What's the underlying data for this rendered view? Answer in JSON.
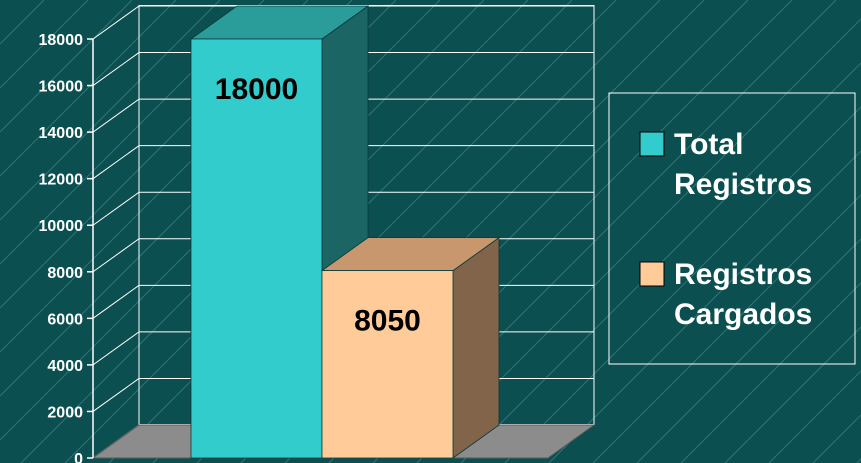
{
  "chart_data": {
    "type": "bar",
    "categories": [
      ""
    ],
    "series": [
      {
        "name": "Total Registros",
        "values": [
          18000
        ]
      },
      {
        "name": "Registros Cargados",
        "values": [
          8050
        ]
      }
    ],
    "title": "",
    "xlabel": "",
    "ylabel": "",
    "ylim": [
      0,
      18000
    ],
    "ytick_labels": [
      "0",
      "2000",
      "4000",
      "6000",
      "8000",
      "10000",
      "12000",
      "14000",
      "16000",
      "18000"
    ],
    "data_labels": [
      "18000",
      "8050"
    ],
    "grid": true,
    "legend_position": "right",
    "legend_entries": [
      {
        "label_lines": [
          "Total",
          "Registros"
        ]
      },
      {
        "label_lines": [
          "Registros",
          "Cargados"
        ]
      }
    ],
    "colors": {
      "background": "#0c4f50",
      "floor": "#8c8c8c",
      "series_front": [
        "#33cccc",
        "#ffcc99"
      ],
      "series_top": [
        "#2a9c9a",
        "#c9976e"
      ],
      "series_side": [
        "#1c6565",
        "#82644a"
      ]
    }
  }
}
